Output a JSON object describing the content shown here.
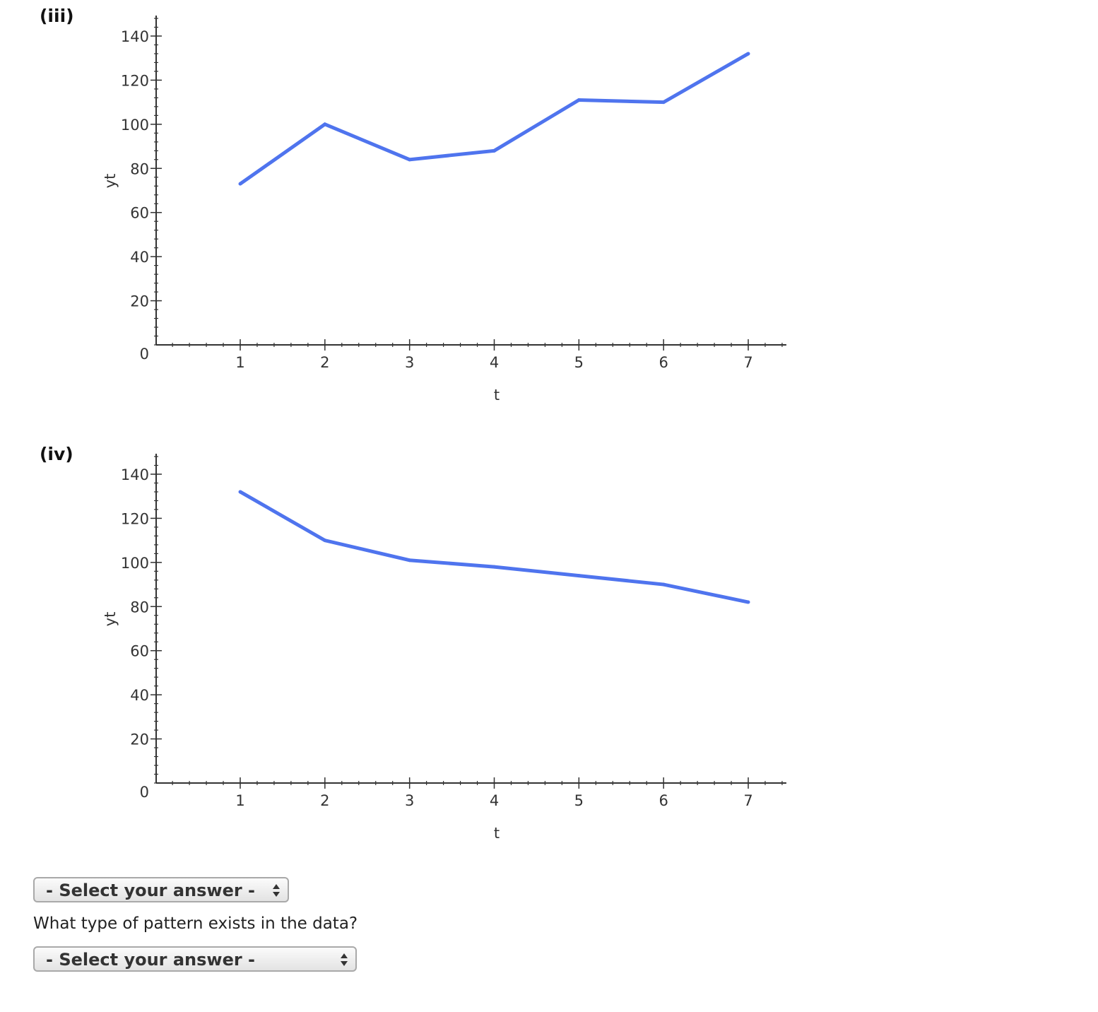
{
  "panels": [
    {
      "label": "(iii)"
    },
    {
      "label": "(iv)"
    }
  ],
  "question": "What type of pattern exists in the data?",
  "selects": [
    {
      "value": "- Select your answer -"
    },
    {
      "value": "- Select your answer -"
    }
  ],
  "colors": {
    "line": "#4f74ee",
    "axis": "#333333"
  },
  "chart_data": [
    {
      "type": "line",
      "xlabel": "t",
      "ylabel": "yt",
      "xlim": [
        0,
        7.45
      ],
      "ylim": [
        0,
        140
      ],
      "xticks": [
        1,
        2,
        3,
        4,
        5,
        6,
        7
      ],
      "yticks": [
        0,
        20,
        40,
        60,
        80,
        100,
        120,
        140
      ],
      "grid": false,
      "x": [
        1,
        2,
        3,
        4,
        5,
        6,
        7
      ],
      "y": [
        73,
        100,
        84,
        88,
        111,
        110,
        132
      ]
    },
    {
      "type": "line",
      "xlabel": "t",
      "ylabel": "yt",
      "xlim": [
        0,
        7.45
      ],
      "ylim": [
        0,
        140
      ],
      "xticks": [
        1,
        2,
        3,
        4,
        5,
        6,
        7
      ],
      "yticks": [
        0,
        20,
        40,
        60,
        80,
        100,
        120,
        140
      ],
      "grid": false,
      "x": [
        1,
        2,
        3,
        4,
        5,
        6,
        7
      ],
      "y": [
        132,
        110,
        101,
        98,
        94,
        90,
        82
      ]
    }
  ]
}
